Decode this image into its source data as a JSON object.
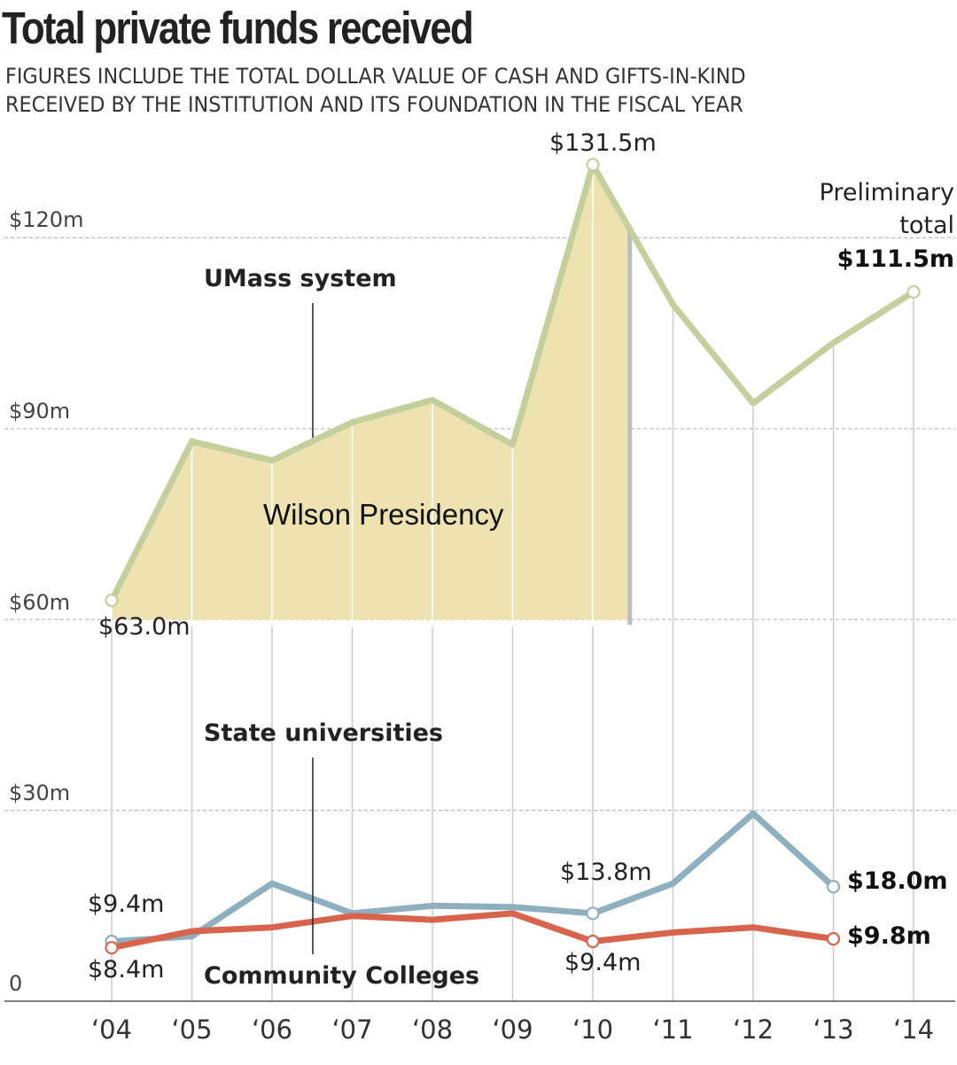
{
  "title": "Total private funds received",
  "subtitle_line1": "FIGURES INCLUDE THE TOTAL DOLLAR VALUE OF CASH AND GIFTS-IN-KIND",
  "subtitle_line2": "RECEIVED BY THE INSTITUTION AND ITS FOUNDATION IN THE FISCAL YEAR",
  "colors": {
    "umass": "#c3cf9c",
    "state": "#8eafc0",
    "community": "#d8644d",
    "shade": "#ede2b0",
    "grid": "#b8b8b8",
    "axis": "#555555"
  },
  "chart_data": {
    "type": "line",
    "categories": [
      "‘04",
      "‘05",
      "‘06",
      "‘07",
      "‘08",
      "‘09",
      "‘10",
      "‘11",
      "‘12",
      "‘13",
      "‘14"
    ],
    "ylim": [
      0,
      140
    ],
    "y_ticks": [
      {
        "value": 0,
        "label": "0"
      },
      {
        "value": 30,
        "label": "$30m"
      },
      {
        "value": 60,
        "label": "$60m"
      },
      {
        "value": 90,
        "label": "$90m"
      },
      {
        "value": 120,
        "label": "$120m"
      }
    ],
    "grid": true,
    "series": [
      {
        "name": "UMass system",
        "color": "#c3cf9c",
        "values": [
          63.0,
          88,
          85,
          91,
          94.5,
          87.5,
          131.5,
          109.5,
          94,
          103.5,
          111.5
        ]
      },
      {
        "name": "State universities",
        "color": "#8eafc0",
        "values": [
          9.4,
          10.2,
          18.5,
          13.8,
          15,
          14.8,
          13.8,
          18.5,
          29.5,
          18.0,
          null
        ]
      },
      {
        "name": "Community Colleges",
        "color": "#d8644d",
        "values": [
          8.4,
          11,
          11.6,
          13.4,
          12.8,
          13.8,
          9.4,
          10.8,
          11.6,
          9.8,
          null
        ]
      }
    ],
    "shaded_region": {
      "label": "Wilson Presidency",
      "x_start": 0,
      "x_end": 6.45
    },
    "annotations": {
      "umass_start": "$63.0m",
      "umass_peak": "$131.5m",
      "prelim_line1": "Preliminary",
      "prelim_line2": "total",
      "prelim_value": "$111.5m",
      "state_start": "$9.4m",
      "state_mid": "$13.8m",
      "state_end": "$18.0m",
      "comm_start": "$8.4m",
      "comm_mid": "$9.4m",
      "comm_end": "$9.8m"
    }
  }
}
